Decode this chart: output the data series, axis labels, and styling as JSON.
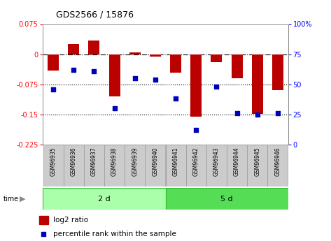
{
  "title": "GDS2566 / 15876",
  "samples": [
    "GSM96935",
    "GSM96936",
    "GSM96937",
    "GSM96938",
    "GSM96939",
    "GSM96940",
    "GSM96941",
    "GSM96942",
    "GSM96943",
    "GSM96944",
    "GSM96945",
    "GSM96946"
  ],
  "log2_ratio": [
    -0.04,
    0.025,
    0.035,
    -0.105,
    0.005,
    -0.005,
    -0.045,
    -0.155,
    -0.02,
    -0.06,
    -0.148,
    -0.09
  ],
  "percentile_rank": [
    46,
    62,
    61,
    30,
    55,
    54,
    38,
    12,
    48,
    26,
    25,
    26
  ],
  "group1_n": 6,
  "group2_n": 6,
  "group1_label": "2 d",
  "group2_label": "5 d",
  "bar_color": "#BB0000",
  "dot_color": "#0000BB",
  "ylim_left": [
    -0.225,
    0.075
  ],
  "ylim_right": [
    0,
    100
  ],
  "yticks_left": [
    0.075,
    0,
    -0.075,
    -0.15,
    -0.225
  ],
  "yticks_right": [
    100,
    75,
    50,
    25,
    0
  ],
  "hlines": [
    0,
    -0.075,
    -0.15
  ],
  "hline_styles": [
    "dashdot",
    "dotted",
    "dotted"
  ],
  "group1_color": "#AAFFAA",
  "group2_color": "#55DD55",
  "group_border_color": "#33BB33",
  "sample_box_color": "#CCCCCC",
  "legend_bar_label": "log2 ratio",
  "legend_dot_label": "percentile rank within the sample",
  "time_label": "time"
}
